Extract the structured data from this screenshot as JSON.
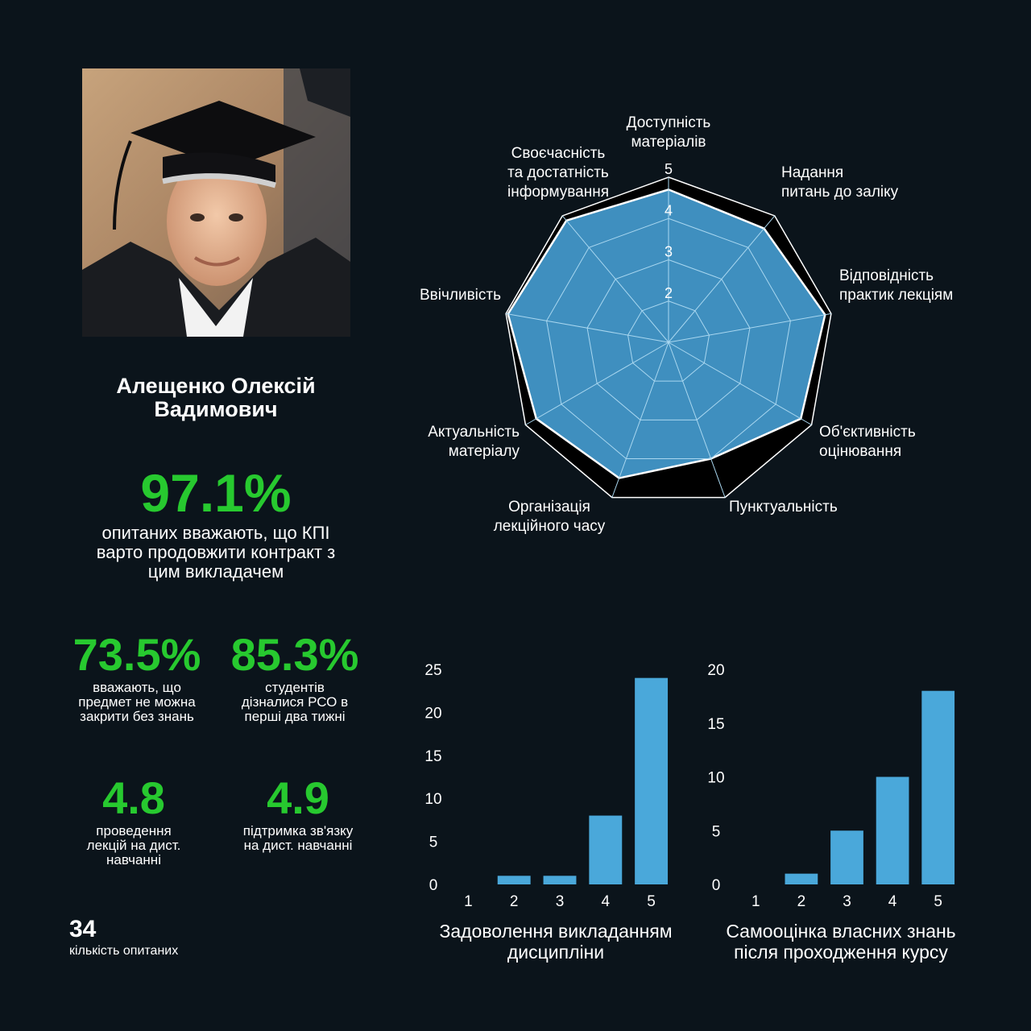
{
  "teacher": {
    "name_line1": "Алещенко Олексій",
    "name_line2": "Вадимович"
  },
  "headline": {
    "value": "97.1%",
    "caption_lines": [
      "опитаних вважають, що КПІ",
      "варто продовжити контракт з",
      "цим викладачем"
    ]
  },
  "stats": [
    {
      "value": "73.5%",
      "caption_lines": [
        "вважають, що",
        "предмет не можна",
        "закрити без знань"
      ]
    },
    {
      "value": "85.3%",
      "caption_lines": [
        "студентів",
        "дізналися РСО в",
        "перші два тижні"
      ]
    },
    {
      "value": "4.8",
      "caption_lines": [
        "проведення",
        "лекцій на дист.",
        "навчанні"
      ]
    },
    {
      "value": "4.9",
      "caption_lines": [
        "підтримка зв'язку",
        "на дист. навчанні"
      ]
    }
  ],
  "respondents": {
    "value": "34",
    "label": "кількість опитаних"
  },
  "colors": {
    "accent_green": "#27c92f",
    "bar_blue": "#4aa8da",
    "radar_fill": "#3f8fbf",
    "background": "#0b141b"
  },
  "chart_data": [
    {
      "type": "radar",
      "rlim": [
        1,
        5
      ],
      "ticks": [
        "2",
        "3",
        "4",
        "5"
      ],
      "axes": [
        {
          "label_lines": [
            "Доступність",
            "матеріалів"
          ],
          "value": 4.7
        },
        {
          "label_lines": [
            "Надання",
            "питань до заліку"
          ],
          "value": 4.6
        },
        {
          "label_lines": [
            "Відповідність",
            "практик лекціям"
          ],
          "value": 4.85
        },
        {
          "label_lines": [
            "Об'єктивність",
            "оцінювання"
          ],
          "value": 4.7
        },
        {
          "label_lines": [
            "Пунктуальність"
          ],
          "value": 4.0
        },
        {
          "label_lines": [
            "Організація",
            "лекційного часу"
          ],
          "value": 4.5
        },
        {
          "label_lines": [
            "Актуальність",
            "матеріалу"
          ],
          "value": 4.7
        },
        {
          "label_lines": [
            "Ввічливість"
          ],
          "value": 4.95
        },
        {
          "label_lines": [
            "Своєчасність",
            "та достатність",
            "інформування"
          ],
          "value": 4.85
        }
      ]
    },
    {
      "type": "bar",
      "title_lines": [
        "Задоволення викладанням",
        "дисципліни"
      ],
      "categories": [
        "1",
        "2",
        "3",
        "4",
        "5"
      ],
      "values": [
        0,
        1,
        1,
        8,
        24
      ],
      "ylim": [
        0,
        25
      ],
      "yticks": [
        0,
        5,
        10,
        15,
        20,
        25
      ]
    },
    {
      "type": "bar",
      "title_lines": [
        "Самооцінка власних знань",
        "після проходження курсу"
      ],
      "categories": [
        "1",
        "2",
        "3",
        "4",
        "5"
      ],
      "values": [
        0,
        1,
        5,
        10,
        18
      ],
      "ylim": [
        0,
        20
      ],
      "yticks": [
        0,
        5,
        10,
        15,
        20
      ]
    }
  ]
}
